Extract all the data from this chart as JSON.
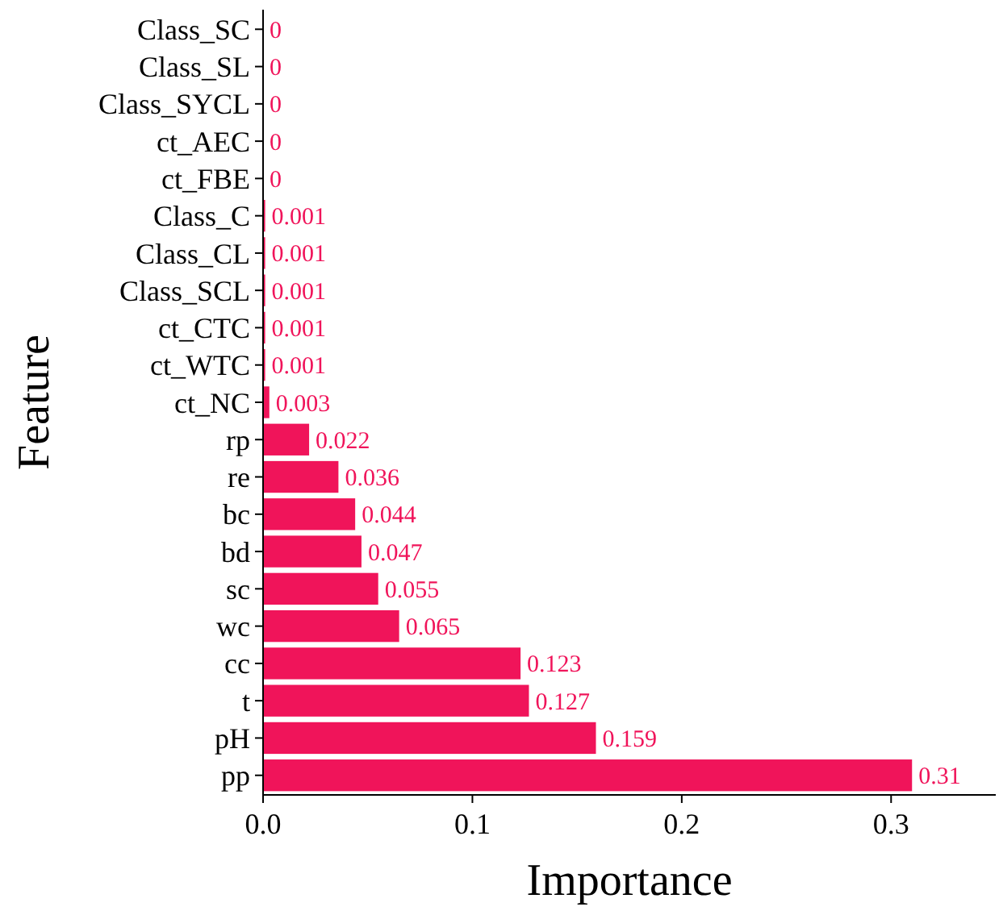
{
  "chart_data": {
    "type": "bar",
    "orientation": "horizontal",
    "xlabel": "Importance",
    "ylabel": "Feature",
    "categories": [
      "Class_SC",
      "Class_SL",
      "Class_SYCL",
      "ct_AEC",
      "ct_FBE",
      "Class_C",
      "Class_CL",
      "Class_SCL",
      "ct_CTC",
      "ct_WTC",
      "ct_NC",
      "rp",
      "re",
      "bc",
      "bd",
      "sc",
      "wc",
      "cc",
      "t",
      "pH",
      "pp"
    ],
    "values": [
      0,
      0,
      0,
      0,
      0,
      0.001,
      0.001,
      0.001,
      0.001,
      0.001,
      0.003,
      0.022,
      0.036,
      0.044,
      0.047,
      0.055,
      0.065,
      0.123,
      0.127,
      0.159,
      0.31
    ],
    "color": "#f0145a",
    "xlim": [
      0,
      0.35
    ],
    "xticks": [
      {
        "value": 0,
        "label": "0.0"
      },
      0.1,
      0.2,
      0.3
    ],
    "data_labels": true,
    "grid": false
  }
}
